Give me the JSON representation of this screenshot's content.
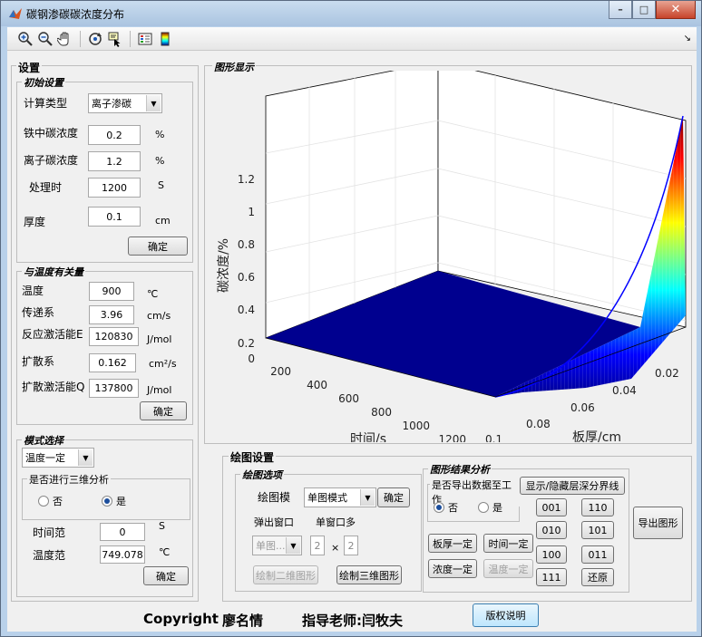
{
  "window": {
    "title": "碳钢渗碳碳浓度分布"
  },
  "settings": {
    "title": "设置",
    "initial": {
      "title": "初始设置",
      "calc_type_label": "计算类型",
      "calc_type_value": "离子渗碳",
      "fe_carbon_label": "铁中碳浓度",
      "fe_carbon_value": "0.2",
      "fe_carbon_unit": "%",
      "ion_carbon_label": "离子碳浓度",
      "ion_carbon_value": "1.2",
      "ion_carbon_unit": "%",
      "time_label": "处理时",
      "time_value": "1200",
      "time_unit": "S",
      "thickness_label": "厚度",
      "thickness_value": "0.1",
      "thickness_unit": "cm",
      "confirm": "确定"
    },
    "temperature": {
      "title": "与温度有关量",
      "temp_label": "温度",
      "temp_value": "900",
      "temp_unit": "℃",
      "transfer_label": "传递系",
      "transfer_value": "3.96",
      "transfer_unit": "cm/s",
      "react_label": "反应激活能E",
      "react_value": "120830",
      "react_unit": "J/mol",
      "diff_label": "扩散系",
      "diff_value": "0.162",
      "diff_unit": "cm²/s",
      "diff_act_label": "扩散激活能Q",
      "diff_act_value": "137800",
      "diff_act_unit": "J/mol",
      "confirm": "确定"
    },
    "mode": {
      "title": "模式选择",
      "mode_value": "温度一定",
      "three_d_label": "是否进行三维分析",
      "no": "否",
      "yes": "是",
      "time_range_label": "时间范",
      "time_range_value": "0",
      "time_range_unit": "S",
      "temp_range_label": "温度范",
      "temp_range_value": "749.078",
      "temp_range_unit": "℃",
      "confirm": "确定"
    }
  },
  "graph": {
    "title": "图形显示",
    "z_label": "碳浓度/%",
    "x_label": "时间/s",
    "y_label": "板厚/cm",
    "z_ticks": [
      "1.2",
      "1",
      "0.8",
      "0.6",
      "0.4",
      "0.2",
      "0"
    ],
    "x_ticks": [
      "200",
      "400",
      "600",
      "800",
      "1000",
      "1200"
    ],
    "y_ticks": [
      "0.02",
      "0.04",
      "0.06",
      "0.08",
      "0.1"
    ]
  },
  "plot_settings": {
    "title": "绘图设置",
    "options": {
      "title": "绘图选项",
      "plot_mode_label": "绘图模",
      "plot_mode_value": "单图模式",
      "confirm": "确定",
      "popup_label": "弹出窗口",
      "multi_label": "单窗口多",
      "sub_select": "单图...",
      "rows": "2",
      "times": "×",
      "cols": "2",
      "draw2d": "绘制二维图形",
      "draw3d": "绘制三维图形"
    },
    "analysis": {
      "title": "图形结果分析",
      "export_data_label": "是否导出数据至工作",
      "no": "否",
      "yes": "是",
      "toggle_layer": "显示/隐藏层深分界线",
      "plate_fixed": "板厚一定",
      "time_fixed": "时间一定",
      "conc_fixed": "浓度一定",
      "temp_fixed": "温度一定",
      "b001": "001",
      "b110": "110",
      "b010": "010",
      "b101": "101",
      "b100": "100",
      "b011": "011",
      "b111": "111",
      "restore": "还原",
      "export_fig": "导出图形"
    }
  },
  "footer": {
    "copyright": "Copyright",
    "author": "廖名情",
    "advisor": "指导老师:闫牧夫",
    "rights_button": "版权说明"
  }
}
